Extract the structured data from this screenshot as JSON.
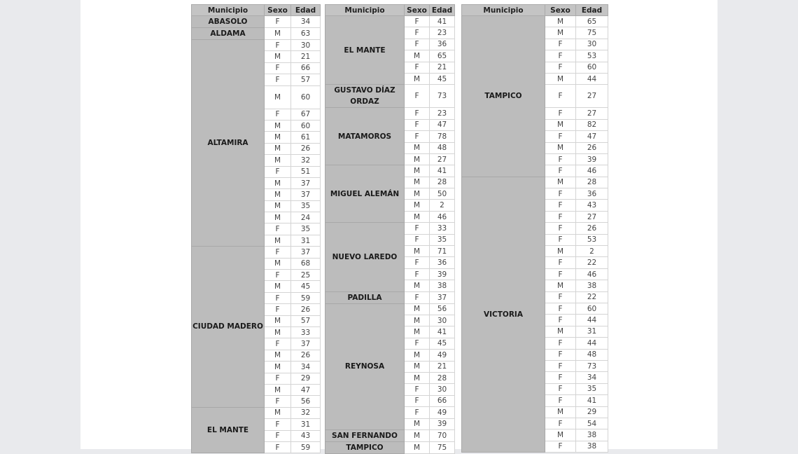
{
  "headers": {
    "municipio": "Municipio",
    "sexo": "Sexo",
    "edad": "Edad"
  },
  "tables": [
    {
      "groups": [
        {
          "municipio": "ABASOLO",
          "rows": [
            [
              "F",
              "34"
            ]
          ]
        },
        {
          "municipio": "ALDAMA",
          "rows": [
            [
              "M",
              "63"
            ]
          ]
        },
        {
          "municipio": "ALTAMIRA",
          "rows": [
            [
              "F",
              "30"
            ],
            [
              "M",
              "21"
            ],
            [
              "F",
              "66"
            ],
            [
              "F",
              "57"
            ],
            [
              "M",
              "60"
            ],
            [
              "F",
              "67"
            ],
            [
              "M",
              "60"
            ],
            [
              "M",
              "61"
            ],
            [
              "M",
              "26"
            ],
            [
              "M",
              "32"
            ],
            [
              "F",
              "51"
            ],
            [
              "M",
              "37"
            ],
            [
              "M",
              "37"
            ],
            [
              "M",
              "35"
            ],
            [
              "M",
              "24"
            ],
            [
              "F",
              "35"
            ],
            [
              "M",
              "31"
            ]
          ]
        },
        {
          "municipio": "CIUDAD MADERO",
          "rows": [
            [
              "F",
              "37"
            ],
            [
              "M",
              "68"
            ],
            [
              "F",
              "25"
            ],
            [
              "M",
              "45"
            ],
            [
              "F",
              "59"
            ],
            [
              "F",
              "26"
            ],
            [
              "M",
              "57"
            ],
            [
              "M",
              "33"
            ],
            [
              "F",
              "37"
            ],
            [
              "M",
              "26"
            ],
            [
              "M",
              "34"
            ],
            [
              "F",
              "29"
            ],
            [
              "M",
              "47"
            ],
            [
              "F",
              "56"
            ]
          ]
        },
        {
          "municipio": "EL MANTE",
          "rows": [
            [
              "M",
              "32"
            ],
            [
              "F",
              "31"
            ],
            [
              "F",
              "43"
            ],
            [
              "F",
              "59"
            ]
          ]
        }
      ]
    },
    {
      "groups": [
        {
          "municipio": "EL MANTE",
          "rows": [
            [
              "F",
              "41"
            ],
            [
              "F",
              "23"
            ],
            [
              "F",
              "36"
            ],
            [
              "M",
              "65"
            ],
            [
              "F",
              "21"
            ],
            [
              "M",
              "45"
            ]
          ]
        },
        {
          "municipio": "GUSTAVO DÍAZ ORDAZ",
          "rows": [
            [
              "F",
              "73"
            ]
          ]
        },
        {
          "municipio": "MATAMOROS",
          "rows": [
            [
              "F",
              "23"
            ],
            [
              "F",
              "47"
            ],
            [
              "F",
              "78"
            ],
            [
              "M",
              "48"
            ],
            [
              "M",
              "27"
            ]
          ]
        },
        {
          "municipio": "MIGUEL ALEMÁN",
          "rows": [
            [
              "M",
              "41"
            ],
            [
              "M",
              "28"
            ],
            [
              "M",
              "50"
            ],
            [
              "M",
              "2"
            ],
            [
              "M",
              "46"
            ]
          ]
        },
        {
          "municipio": "NUEVO LAREDO",
          "rows": [
            [
              "F",
              "33"
            ],
            [
              "F",
              "35"
            ],
            [
              "M",
              "71"
            ],
            [
              "F",
              "36"
            ],
            [
              "F",
              "39"
            ],
            [
              "M",
              "38"
            ]
          ]
        },
        {
          "municipio": "PADILLA",
          "rows": [
            [
              "F",
              "37"
            ]
          ]
        },
        {
          "municipio": "REYNOSA",
          "rows": [
            [
              "M",
              "56"
            ],
            [
              "M",
              "30"
            ],
            [
              "M",
              "41"
            ],
            [
              "F",
              "45"
            ],
            [
              "M",
              "49"
            ],
            [
              "M",
              "21"
            ],
            [
              "M",
              "28"
            ],
            [
              "F",
              "30"
            ],
            [
              "F",
              "66"
            ],
            [
              "F",
              "49"
            ],
            [
              "M",
              "39"
            ]
          ]
        },
        {
          "municipio": "SAN FERNANDO",
          "rows": [
            [
              "M",
              "70"
            ]
          ]
        },
        {
          "municipio": "TAMPICO",
          "rows": [
            [
              "M",
              "75"
            ]
          ]
        }
      ]
    },
    {
      "groups": [
        {
          "municipio": "TAMPICO",
          "rows": [
            [
              "M",
              "65"
            ],
            [
              "M",
              "75"
            ],
            [
              "F",
              "30"
            ],
            [
              "F",
              "53"
            ],
            [
              "F",
              "60"
            ],
            [
              "M",
              "44"
            ],
            [
              "F",
              "27"
            ],
            [
              "F",
              "27"
            ],
            [
              "M",
              "82"
            ],
            [
              "F",
              "47"
            ],
            [
              "M",
              "26"
            ],
            [
              "F",
              "39"
            ],
            [
              "F",
              "46"
            ]
          ]
        },
        {
          "municipio": "VICTORIA",
          "rows": [
            [
              "M",
              "28"
            ],
            [
              "F",
              "36"
            ],
            [
              "F",
              "43"
            ],
            [
              "F",
              "27"
            ],
            [
              "F",
              "26"
            ],
            [
              "F",
              "53"
            ],
            [
              "M",
              "2"
            ],
            [
              "F",
              "22"
            ],
            [
              "F",
              "46"
            ],
            [
              "M",
              "38"
            ],
            [
              "F",
              "22"
            ],
            [
              "F",
              "60"
            ],
            [
              "F",
              "44"
            ],
            [
              "M",
              "31"
            ],
            [
              "F",
              "44"
            ],
            [
              "F",
              "48"
            ],
            [
              "F",
              "73"
            ],
            [
              "F",
              "34"
            ],
            [
              "F",
              "35"
            ],
            [
              "F",
              "41"
            ],
            [
              "M",
              "29"
            ],
            [
              "F",
              "54"
            ],
            [
              "M",
              "38"
            ],
            [
              "F",
              "38"
            ]
          ]
        }
      ]
    }
  ]
}
